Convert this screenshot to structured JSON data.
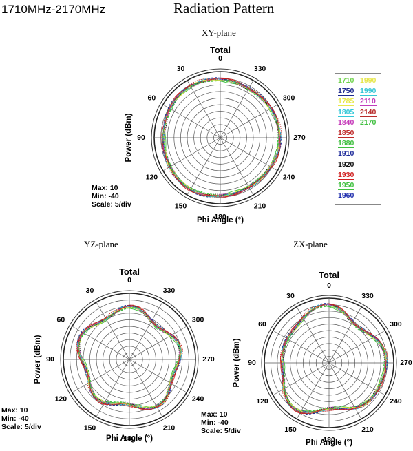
{
  "header": {
    "freq_range": "1710MHz-2170MHz",
    "main_title": "Radiation Pattern"
  },
  "legend": {
    "entries": [
      {
        "label": "1710",
        "color": "#6fd24b"
      },
      {
        "label": "1750",
        "color": "#1f2a8f"
      },
      {
        "label": "1785",
        "color": "#e8e84a"
      },
      {
        "label": "1805",
        "color": "#33c8d8"
      },
      {
        "label": "1840",
        "color": "#c436b8"
      },
      {
        "label": "1850",
        "color": "#c02a2a"
      },
      {
        "label": "1880",
        "color": "#3fbf3f"
      },
      {
        "label": "1910",
        "color": "#1e2b9a"
      },
      {
        "label": "1920",
        "color": "#111111"
      },
      {
        "label": "1930",
        "color": "#d02020"
      },
      {
        "label": "1950",
        "color": "#3ec03e"
      },
      {
        "label": "1960",
        "color": "#1e2dad"
      },
      {
        "label": "1990",
        "color": "#e6e64a"
      },
      {
        "label": "1990",
        "color": "#36c6d6"
      },
      {
        "label": "2110",
        "color": "#c23cbc"
      },
      {
        "label": "2140",
        "color": "#b82b2b"
      },
      {
        "label": "2170",
        "color": "#40bf40"
      }
    ]
  },
  "chart_data": [
    {
      "type": "polar-line",
      "plane": "XY-plane",
      "title": "Total",
      "ylabel": "Power (dBm)",
      "xlabel": "Phi Angle (°)",
      "rlim": [
        -40,
        10
      ],
      "max_label": "Max: 10",
      "min_label": "Min: -40",
      "scale_label": "Scale: 5/div",
      "angle_labels": [
        "0",
        "30",
        "60",
        "90",
        "120",
        "150",
        "180",
        "210",
        "240",
        "270",
        "300",
        "330"
      ],
      "shape": "omni",
      "levels": [
        0.0,
        0.1,
        -0.1,
        0.05,
        -0.05,
        0.15,
        -0.15,
        0.08,
        -0.08,
        0.12,
        -0.12,
        0.03,
        -0.03,
        0.06,
        -0.06,
        0.09,
        -0.09
      ]
    },
    {
      "type": "polar-line",
      "plane": "YZ-plane",
      "title": "Total",
      "ylabel": "Power (dBm)",
      "xlabel": "Phi Angle (°)",
      "rlim": [
        -40,
        10
      ],
      "max_label": "Max: 10",
      "min_label": "Min: -40",
      "scale_label": "Scale: 5/div",
      "angle_labels": [
        "0",
        "30",
        "60",
        "90",
        "120",
        "150",
        "180",
        "210",
        "240",
        "270",
        "300",
        "330"
      ],
      "shape": "lobed",
      "levels": [
        0.0,
        0.1,
        -0.1,
        0.05,
        -0.05,
        0.15,
        -0.15,
        0.08,
        -0.08,
        0.12,
        -0.12,
        0.03,
        -0.03,
        0.06,
        -0.06,
        0.09,
        -0.09
      ]
    },
    {
      "type": "polar-line",
      "plane": "ZX-plane",
      "title": "Total",
      "ylabel": "Power (dBm)",
      "xlabel": "Phi Angle (°)",
      "rlim": [
        -40,
        10
      ],
      "max_label": "Max: 10",
      "min_label": "Min: -40",
      "scale_label": "Scale: 5/div",
      "angle_labels": [
        "0",
        "30",
        "60",
        "90",
        "120",
        "150",
        "180",
        "210",
        "240",
        "270",
        "300",
        "330"
      ],
      "shape": "irregular",
      "levels": [
        0.0,
        0.1,
        -0.1,
        0.05,
        -0.05,
        0.15,
        -0.15,
        0.08,
        -0.08,
        0.12,
        -0.12,
        0.03,
        -0.03,
        0.06,
        -0.06,
        0.09,
        -0.09
      ]
    }
  ]
}
